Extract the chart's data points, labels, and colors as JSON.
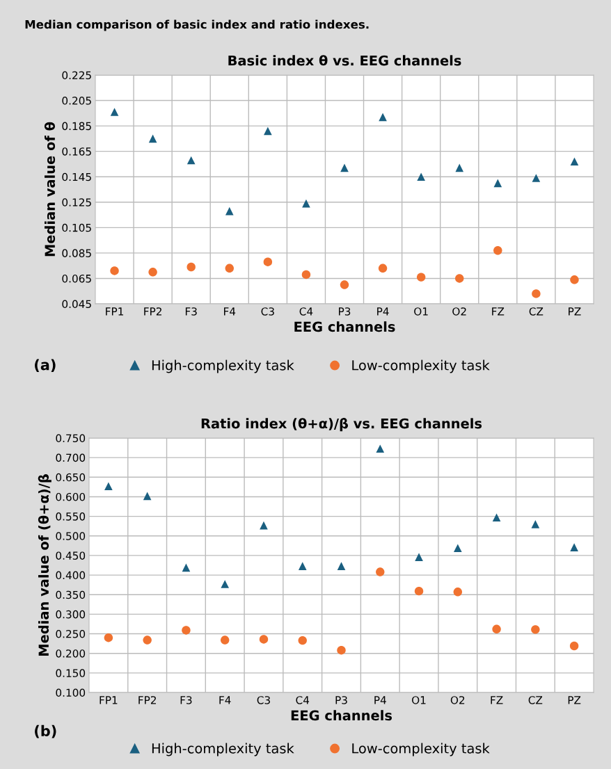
{
  "chart_data": [
    {
      "type": "scatter",
      "title": "Basic index θ vs. EEG channels",
      "xlabel": "EEG channels",
      "ylabel": "Median value of θ",
      "annotations": [
        "Median comparison of basic index and ratio indexes.",
        "(a)"
      ],
      "categories": [
        "FP1",
        "FP2",
        "F3",
        "F4",
        "C3",
        "C4",
        "P3",
        "P4",
        "O1",
        "O2",
        "FZ",
        "CZ",
        "PZ"
      ],
      "series": [
        {
          "name": "High-complexity task",
          "color": "#1a5f80",
          "marker": "triangle",
          "values": [
            0.196,
            0.175,
            0.158,
            0.118,
            0.181,
            0.124,
            0.152,
            0.192,
            0.145,
            0.152,
            0.14,
            0.144,
            0.157
          ]
        },
        {
          "name": "Low-complexity task",
          "color": "#f07230",
          "marker": "circle",
          "values": [
            0.071,
            0.07,
            0.074,
            0.073,
            0.078,
            0.068,
            0.06,
            0.073,
            0.066,
            0.065,
            0.087,
            0.053,
            0.064
          ]
        }
      ],
      "ylim": [
        0.045,
        0.225
      ],
      "yticks": [
        0.045,
        0.065,
        0.085,
        0.105,
        0.125,
        0.145,
        0.165,
        0.185,
        0.205,
        0.225
      ],
      "grid": true,
      "legend": "bottom"
    },
    {
      "type": "scatter",
      "title": "Ratio index (θ+α)/β vs. EEG channels",
      "xlabel": "EEG channels",
      "ylabel": "Median value of (θ+α)/β",
      "annotations": [
        "(b)"
      ],
      "categories": [
        "FP1",
        "FP2",
        "F3",
        "F4",
        "C3",
        "C4",
        "P3",
        "P4",
        "O1",
        "O2",
        "FZ",
        "CZ",
        "PZ"
      ],
      "series": [
        {
          "name": "High-complexity task",
          "color": "#1a5f80",
          "marker": "triangle",
          "values": [
            0.627,
            0.602,
            0.419,
            0.377,
            0.527,
            0.423,
            0.423,
            0.723,
            0.446,
            0.469,
            0.547,
            0.53,
            0.471
          ]
        },
        {
          "name": "Low-complexity task",
          "color": "#f07230",
          "marker": "circle",
          "values": [
            0.24,
            0.234,
            0.259,
            0.234,
            0.236,
            0.233,
            0.208,
            0.408,
            0.359,
            0.357,
            0.262,
            0.261,
            0.219
          ]
        }
      ],
      "ylim": [
        0.1,
        0.75
      ],
      "yticks": [
        {
          "value": 0.1,
          "label": "0.100"
        },
        {
          "value": 0.15,
          "label": "0.150"
        },
        {
          "value": 0.2,
          "label": "0.200"
        },
        {
          "value": 0.25,
          "label": "0.250"
        },
        {
          "value": 0.3,
          "label": "0.300"
        },
        {
          "value": 0.35,
          "label": "0.350"
        },
        {
          "value": 0.4,
          "label": "0.400"
        },
        {
          "value": 0.45,
          "label": "0.450"
        },
        {
          "value": 0.5,
          "label": "0.500"
        },
        {
          "value": 0.55,
          "label": "0.550"
        },
        {
          "value": 0.6,
          "label": "0.600"
        },
        {
          "value": 0.65,
          "label": "0.650"
        },
        {
          "value": 0.7,
          "label": "0.700"
        },
        {
          "value": 0.75,
          "label": "0.750"
        }
      ],
      "grid": true,
      "legend": "bottom"
    }
  ]
}
